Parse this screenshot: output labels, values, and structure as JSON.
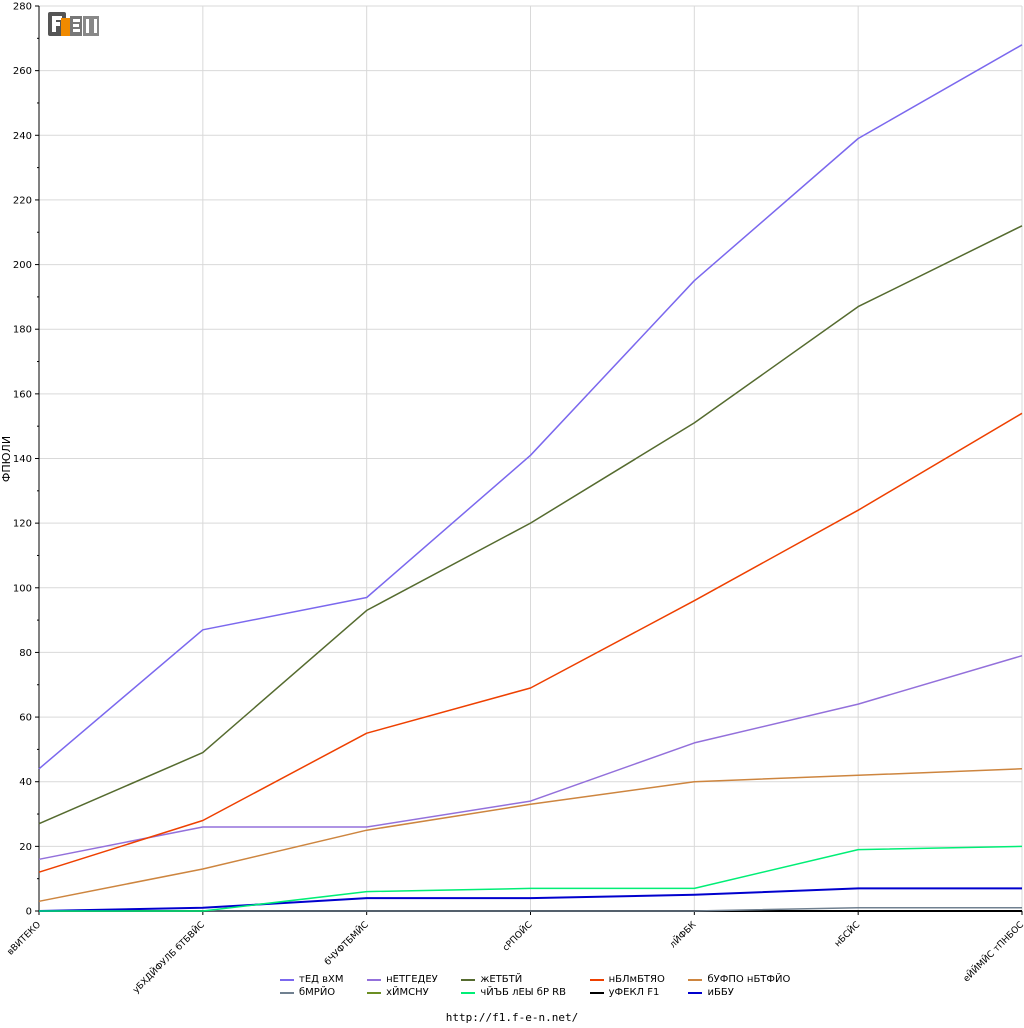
{
  "chart_data": {
    "type": "line",
    "ylabel": "ФПЮЛИ",
    "ylim": [
      0,
      280
    ],
    "yticks": [
      0,
      20,
      40,
      60,
      80,
      100,
      120,
      140,
      160,
      180,
      200,
      220,
      240,
      260,
      280
    ],
    "grid": true,
    "legend_position": "bottom",
    "categories": [
      "вВИТЕКО",
      "уБХДЙФУЛБ бТБВЙС",
      "бЧУФТБМЙС",
      "сРПОЙС",
      "лЙФБК",
      "нБСЙС",
      "еЙЙМЙС тПНБОС"
    ],
    "series": [
      {
        "name": "тЕД вХМ",
        "color": "#7b68ee",
        "values": [
          44,
          87,
          97,
          141,
          195,
          239,
          268
        ]
      },
      {
        "name": "нЕТГЕДЕУ",
        "color": "#9370db",
        "values": [
          16,
          26,
          26,
          34,
          52,
          64,
          79
        ]
      },
      {
        "name": "жЕТБТЙ",
        "color": "#556b2f",
        "values": [
          27,
          49,
          93,
          120,
          151,
          187,
          212
        ]
      },
      {
        "name": "нБЛмБТЯО",
        "color": "#ee4000",
        "values": [
          12,
          28,
          55,
          69,
          96,
          124,
          154
        ]
      },
      {
        "name": "бУФПО нБТФЙО",
        "color": "#cd853f",
        "values": [
          3,
          13,
          25,
          33,
          40,
          42,
          44
        ]
      },
      {
        "name": "бМРЙО",
        "color": "#708090",
        "values": [
          0,
          0,
          0,
          0,
          0,
          1,
          1
        ]
      },
      {
        "name": "хЙМСНУ",
        "color": "#6b8e23",
        "values": [
          0,
          0,
          0,
          0,
          0,
          0,
          0
        ]
      },
      {
        "name": "чЙЪБ лЕЫ бР RB",
        "color": "#00ee76",
        "values": [
          0,
          0,
          6,
          7,
          7,
          19,
          20
        ]
      },
      {
        "name": "уФЕКЛ F1",
        "color": "#000000",
        "values": [
          0,
          0,
          0,
          0,
          0,
          0,
          0
        ]
      },
      {
        "name": "иББУ",
        "color": "#0000cd",
        "values": [
          0,
          1,
          4,
          4,
          5,
          7,
          7
        ]
      }
    ]
  },
  "footer": {
    "url": "http://f1.f-e-n.net/"
  }
}
